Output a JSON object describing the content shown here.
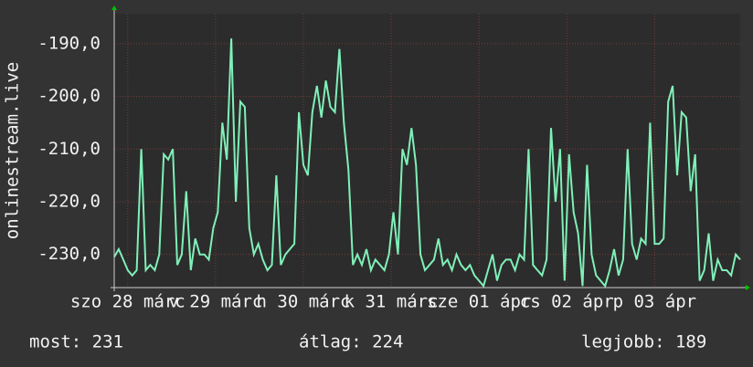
{
  "chart_data": {
    "type": "line",
    "y_label": "onlinestream.live",
    "series": [
      {
        "color": "#7ff0b8",
        "values": [
          -230.5,
          -229,
          -231,
          -233,
          -234,
          -233,
          -210,
          -233,
          -232,
          -233,
          -230,
          -211,
          -212,
          -210,
          -232,
          -230,
          -218,
          -233,
          -227,
          -230,
          -230,
          -231,
          -225,
          -222,
          -205,
          -212,
          -189,
          -220,
          -201,
          -202,
          -225,
          -230,
          -228,
          -231,
          -233,
          -232,
          -215,
          -232,
          -230,
          -229,
          -228,
          -203,
          -213,
          -215,
          -203,
          -198,
          -204,
          -197,
          -202,
          -203,
          -191,
          -205,
          -214,
          -232,
          -230,
          -232,
          -229,
          -233,
          -231,
          -232,
          -233,
          -230,
          -222,
          -230,
          -210,
          -213,
          -206,
          -213,
          -230,
          -233,
          -232,
          -231,
          -227,
          -232,
          -231,
          -233,
          -230,
          -232,
          -233,
          -232,
          -234,
          -235,
          -236,
          -233,
          -230,
          -235,
          -232,
          -231,
          -231,
          -233,
          -230,
          -231,
          -210,
          -232,
          -233,
          -234,
          -231,
          -206,
          -220,
          -210,
          -235,
          -211,
          -222,
          -226,
          -236,
          -213,
          -230,
          -234,
          -235,
          -236,
          -233,
          -229,
          -234,
          -231,
          -210,
          -228,
          -231,
          -227,
          -228,
          -205,
          -228,
          -228,
          -227,
          -201,
          -198,
          -215,
          -203,
          -204,
          -218,
          -211,
          -235,
          -233,
          -226,
          -235,
          -231,
          -233,
          -233,
          -234,
          -230,
          -231
        ]
      }
    ],
    "xlim": [
      0,
      139
    ],
    "xticks": [
      {
        "value": 3,
        "label": "szo 28 márc"
      },
      {
        "value": 22.5,
        "label": "v 29 márc"
      },
      {
        "value": 42,
        "label": "h 30 márc"
      },
      {
        "value": 61.5,
        "label": "k 31 márc"
      },
      {
        "value": 81,
        "label": "sze 01 ápr"
      },
      {
        "value": 100.5,
        "label": "cs 02 ápr"
      },
      {
        "value": 120,
        "label": "p 03 ápr"
      }
    ],
    "ylim": [
      -236.3,
      -184.3
    ],
    "yticks": [
      {
        "value": -190,
        "label": "-190,0"
      },
      {
        "value": -200,
        "label": "-200,0"
      },
      {
        "value": -210,
        "label": "-210,0"
      },
      {
        "value": -220,
        "label": "-220,0"
      },
      {
        "value": -230,
        "label": "-230,0"
      }
    ],
    "grid": true,
    "stats": [
      "most: 231",
      "átlag: 224",
      "legjobb: 189"
    ]
  }
}
